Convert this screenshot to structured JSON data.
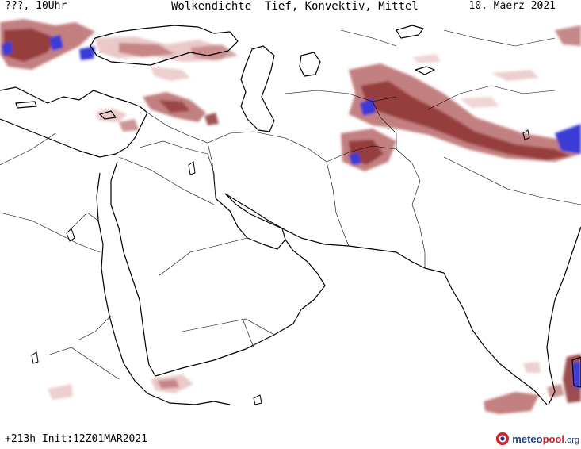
{
  "header": {
    "left": "???, 10Uhr",
    "center": "Wolkendichte  Tief, Konvektiv, Mittel",
    "right": "10. Maerz 2021"
  },
  "footer": {
    "run_info": "+213h Init:12Z01MAR2021"
  },
  "logo": {
    "prefix": "meteo",
    "accent": "pool",
    "suffix": ".org"
  },
  "colors": {
    "cloud_light": "#e9c3c3",
    "cloud_mid": "#b86a6a",
    "cloud_dark": "#8c2d2d",
    "cloud_extreme": "#3a3ad6",
    "coast": "#000000",
    "border": "#000000"
  }
}
